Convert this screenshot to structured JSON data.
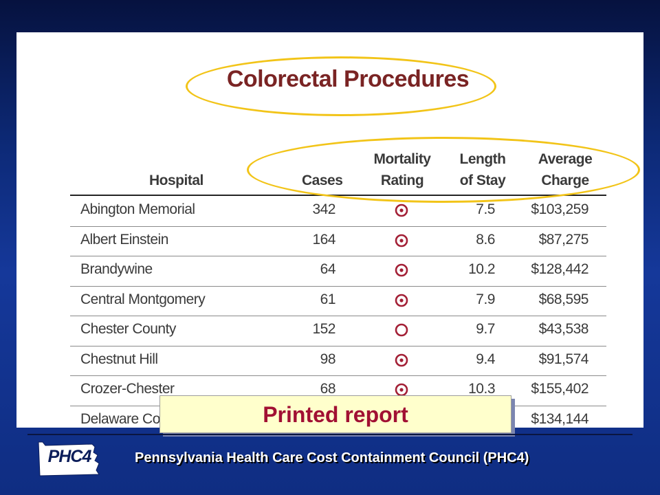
{
  "report": {
    "title": "Colorectal Procedures",
    "columns": {
      "hospital": [
        "Hospital"
      ],
      "cases": [
        "Cases"
      ],
      "mortality": [
        "Mortality",
        "Rating"
      ],
      "stay": [
        "Length",
        "of Stay"
      ],
      "charge": [
        "Average",
        "Charge"
      ]
    },
    "rows": [
      {
        "hospital": "Abington Memorial",
        "cases": "342",
        "mortality": "dot-circle",
        "stay": "7.5",
        "charge": "$103,259"
      },
      {
        "hospital": "Albert Einstein",
        "cases": "164",
        "mortality": "dot-circle",
        "stay": "8.6",
        "charge": "$87,275"
      },
      {
        "hospital": "Brandywine",
        "cases": "64",
        "mortality": "dot-circle",
        "stay": "10.2",
        "charge": "$128,442"
      },
      {
        "hospital": "Central Montgomery",
        "cases": "61",
        "mortality": "dot-circle",
        "stay": "7.9",
        "charge": "$68,595"
      },
      {
        "hospital": "Chester County",
        "cases": "152",
        "mortality": "open-circle",
        "stay": "9.7",
        "charge": "$43,538"
      },
      {
        "hospital": "Chestnut Hill",
        "cases": "98",
        "mortality": "dot-circle",
        "stay": "9.4",
        "charge": "$91,574"
      },
      {
        "hospital": "Crozer-Chester",
        "cases": "68",
        "mortality": "dot-circle",
        "stay": "10.3",
        "charge": "$155,402"
      },
      {
        "hospital": "Delaware County Memorial",
        "cases": "",
        "mortality": "",
        "stay": "",
        "charge": "$134,144"
      }
    ]
  },
  "callout": {
    "label": "Printed report"
  },
  "footer": {
    "logo_text": "PHC4",
    "org_name": "Pennsylvania Health Care Cost Containment Council  (PHC4)"
  },
  "colors": {
    "title": "#7a2424",
    "highlight_ellipse": "#f2c418",
    "callout_text": "#a11033",
    "callout_bg": "#ffffcc",
    "rating_icon": "#a32036",
    "background": "#15389a"
  }
}
